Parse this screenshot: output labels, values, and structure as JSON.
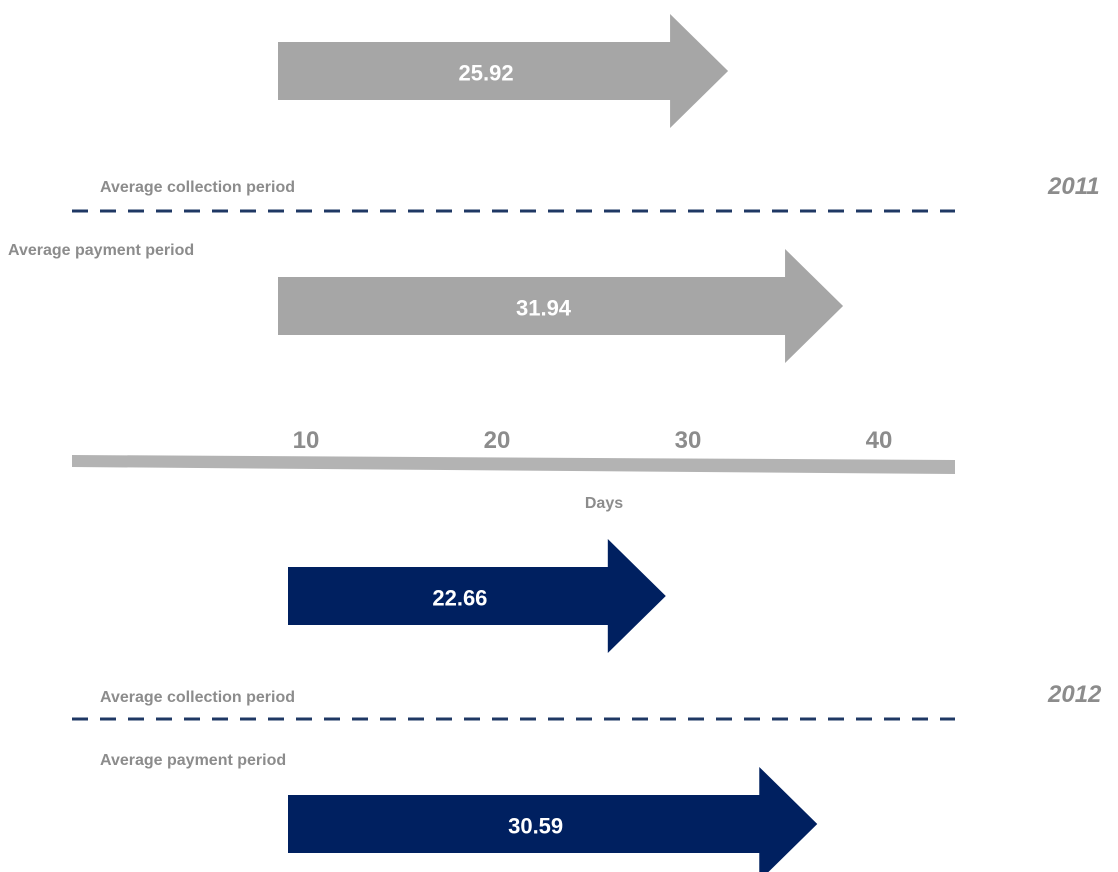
{
  "chart_data": {
    "type": "bar",
    "xlabel": "Days",
    "ticks": [
      10,
      20,
      30,
      40
    ],
    "colors": {
      "2011": "#a6a6a6",
      "2012": "#002060",
      "axis": "#b3b3b3",
      "divider": "#1f3864",
      "text": "#8c8c8c"
    },
    "groups": [
      {
        "year": "2011",
        "divider_top_label": "Average collection period",
        "divider_bottom_label": "Average payment period",
        "arrows": [
          {
            "label": "Average collection period",
            "value": 25.92,
            "display": "25.92"
          },
          {
            "label": "Average payment period",
            "value": 31.94,
            "display": "31.94"
          }
        ]
      },
      {
        "year": "2012",
        "divider_top_label": "Average collection period",
        "divider_bottom_label": "Average payment period",
        "arrows": [
          {
            "label": "Average collection period",
            "value": 22.66,
            "display": "22.66"
          },
          {
            "label": "Average payment period",
            "value": 30.59,
            "display": "30.59"
          }
        ]
      }
    ]
  }
}
